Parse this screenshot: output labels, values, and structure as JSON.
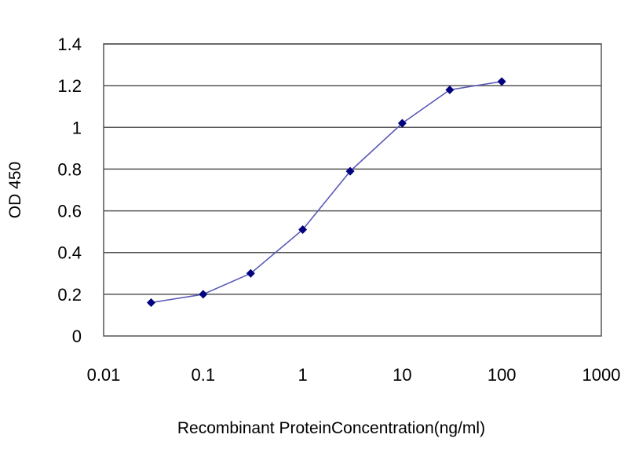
{
  "chart_data": {
    "type": "line",
    "title": "",
    "xlabel": "Recombinant ProteinConcentration(ng/ml)",
    "ylabel": "OD 450",
    "xscale": "log",
    "xlim": [
      0.01,
      1000
    ],
    "ylim": [
      0,
      1.4
    ],
    "x_ticks": [
      0.01,
      0.1,
      1,
      10,
      100,
      1000
    ],
    "x_tick_labels": [
      "0.01",
      "0.1",
      "1",
      "10",
      "100",
      "1000"
    ],
    "y_ticks": [
      0,
      0.2,
      0.4,
      0.6,
      0.8,
      1,
      1.2,
      1.4
    ],
    "y_tick_labels": [
      "0",
      "0.2",
      "0.4",
      "0.6",
      "0.8",
      "1",
      "1.2",
      "1.4"
    ],
    "grid": "horizontal",
    "legend": "none",
    "series": [
      {
        "x": [
          0.03,
          0.1,
          0.3,
          1,
          3,
          10,
          30,
          100
        ],
        "y": [
          0.16,
          0.2,
          0.3,
          0.51,
          0.79,
          1.02,
          1.18,
          1.22
        ],
        "color": "#5b5bb8",
        "marker_color": "#000080"
      }
    ],
    "plot_background": "#ffffff",
    "grid_color": "#555555"
  }
}
